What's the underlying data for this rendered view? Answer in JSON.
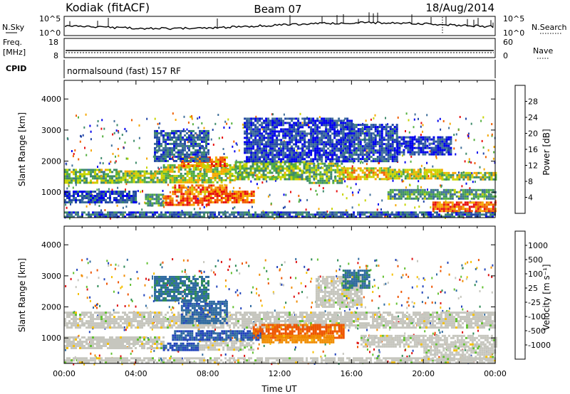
{
  "header": {
    "station": "Kodiak (fitACF)",
    "beam": "Beam 07",
    "date": "18/Aug/2014"
  },
  "noise_panel": {
    "left_label": "N.Sky",
    "right_label": "N.Search",
    "left_ticks": [
      "10^5",
      "10^0"
    ],
    "right_ticks": [
      "10^5",
      "10^0"
    ]
  },
  "freq_panel": {
    "left_label_line1": "Freq.",
    "left_label_line2": "[MHz]",
    "right_label": "Nave",
    "left_ticks": [
      "18",
      "8"
    ],
    "right_ticks": [
      "60",
      "0"
    ]
  },
  "cpid_panel": {
    "label": "CPID",
    "text": "normalsound (fast) 157 RF"
  },
  "colors": {
    "power": [
      "#0000ee",
      "#2246a8",
      "#3f6f9a",
      "#3d8a6a",
      "#55b040",
      "#c8d400",
      "#f5a800",
      "#f06000",
      "#e81010"
    ],
    "velocity": [
      "#2244bb",
      "#2f6aa0",
      "#2d8a55",
      "#62c030",
      "#c6c6be",
      "#f5c000",
      "#f08c00",
      "#ee5500",
      "#dd1111"
    ]
  },
  "chart_data": [
    {
      "type": "heatmap",
      "name": "power",
      "ylabel": "Slant Range [km]",
      "yticks": [
        1000,
        2000,
        3000,
        4000
      ],
      "ylim": [
        180,
        4600
      ],
      "xlim": [
        0,
        24
      ],
      "colorbar": {
        "label": "Power [dB]",
        "ticks": [
          "28",
          "24",
          "20",
          "16",
          "12",
          "8",
          "4"
        ],
        "range": [
          0,
          32
        ]
      },
      "regions": [
        {
          "x0": 0,
          "x1": 24,
          "r0": 180,
          "r1": 380,
          "level": 0.25
        },
        {
          "x0": 0,
          "x1": 3,
          "r0": 1300,
          "r1": 1750,
          "level": 0.5
        },
        {
          "x0": 3,
          "x1": 5.5,
          "r0": 1300,
          "r1": 1700,
          "level": 0.55
        },
        {
          "x0": 5.5,
          "x1": 9.5,
          "r0": 1350,
          "r1": 1900,
          "level": 0.6
        },
        {
          "x0": 6.5,
          "x1": 9,
          "r0": 1850,
          "r1": 2150,
          "level": 0.8
        },
        {
          "x0": 9.5,
          "x1": 13.5,
          "r0": 1450,
          "r1": 2000,
          "level": 0.5
        },
        {
          "x0": 13.5,
          "x1": 15.5,
          "r0": 1300,
          "r1": 1950,
          "level": 0.5
        },
        {
          "x0": 15.5,
          "x1": 18,
          "r0": 1450,
          "r1": 1800,
          "level": 0.7
        },
        {
          "x0": 18,
          "x1": 21,
          "r0": 1450,
          "r1": 1750,
          "level": 0.6
        },
        {
          "x0": 21,
          "x1": 24,
          "r0": 1400,
          "r1": 1650,
          "level": 0.55
        },
        {
          "x0": 0,
          "x1": 4,
          "r0": 700,
          "r1": 1050,
          "level": 0.2
        },
        {
          "x0": 4.5,
          "x1": 5.5,
          "r0": 600,
          "r1": 950,
          "level": 0.4
        },
        {
          "x0": 5.5,
          "x1": 8,
          "r0": 580,
          "r1": 900,
          "level": 0.88
        },
        {
          "x0": 6,
          "x1": 9,
          "r0": 950,
          "r1": 1250,
          "level": 0.8
        },
        {
          "x0": 8,
          "x1": 10.5,
          "r0": 650,
          "r1": 1050,
          "level": 0.85
        },
        {
          "x0": 10,
          "x1": 16,
          "r0": 2000,
          "r1": 3400,
          "level": 0.15
        },
        {
          "x0": 15.5,
          "x1": 18.5,
          "r0": 2000,
          "r1": 3200,
          "level": 0.2
        },
        {
          "x0": 18.5,
          "x1": 21.5,
          "r0": 2200,
          "r1": 2800,
          "level": 0.15
        },
        {
          "x0": 18,
          "x1": 24,
          "r0": 800,
          "r1": 1100,
          "level": 0.4
        },
        {
          "x0": 20.5,
          "x1": 24,
          "r0": 400,
          "r1": 700,
          "level": 0.85
        },
        {
          "x0": 5,
          "x1": 8,
          "r0": 2000,
          "r1": 3000,
          "level": 0.25
        }
      ]
    },
    {
      "type": "heatmap",
      "name": "velocity",
      "ylabel": "Slant Range [km]",
      "yticks": [
        1000,
        2000,
        3000,
        4000
      ],
      "ylim": [
        180,
        4600
      ],
      "xlim": [
        0,
        24
      ],
      "xticks": [
        "00:00",
        "04:00",
        "08:00",
        "12:00",
        "16:00",
        "20:00",
        "00:00"
      ],
      "xlabel": "Time UT",
      "colorbar": {
        "label": "Velocity [m s⁻¹]",
        "ticks": [
          "1000",
          "500",
          "100",
          "25",
          "-25",
          "-100",
          "-500",
          "-1000"
        ],
        "range": [
          -1000,
          1000
        ]
      },
      "regions": [
        {
          "x0": 0,
          "x1": 24,
          "r0": 180,
          "r1": 380,
          "level": 0.5
        },
        {
          "x0": 0,
          "x1": 24,
          "r0": 1350,
          "r1": 1850,
          "level": 0.5
        },
        {
          "x0": 0,
          "x1": 5.5,
          "r0": 700,
          "r1": 1050,
          "level": 0.5
        },
        {
          "x0": 5.5,
          "x1": 7.5,
          "r0": 580,
          "r1": 850,
          "level": 0.1
        },
        {
          "x0": 7.5,
          "x1": 10.5,
          "r0": 650,
          "r1": 1000,
          "level": 0.5
        },
        {
          "x0": 6,
          "x1": 11,
          "r0": 950,
          "r1": 1250,
          "level": 0.12
        },
        {
          "x0": 6.5,
          "x1": 9,
          "r0": 1500,
          "r1": 2200,
          "level": 0.15
        },
        {
          "x0": 10.5,
          "x1": 15.5,
          "r0": 1000,
          "r1": 1450,
          "level": 0.82
        },
        {
          "x0": 11,
          "x1": 15,
          "r0": 850,
          "r1": 1100,
          "level": 0.72
        },
        {
          "x0": 14,
          "x1": 16.5,
          "r0": 2000,
          "r1": 3000,
          "level": 0.5
        },
        {
          "x0": 15.5,
          "x1": 17,
          "r0": 2600,
          "r1": 3200,
          "level": 0.2
        },
        {
          "x0": 16.5,
          "x1": 24,
          "r0": 700,
          "r1": 1100,
          "level": 0.5
        },
        {
          "x0": 20,
          "x1": 24,
          "r0": 350,
          "r1": 700,
          "level": 0.5
        },
        {
          "x0": 5,
          "x1": 8,
          "r0": 2200,
          "r1": 3000,
          "level": 0.2
        }
      ]
    }
  ]
}
